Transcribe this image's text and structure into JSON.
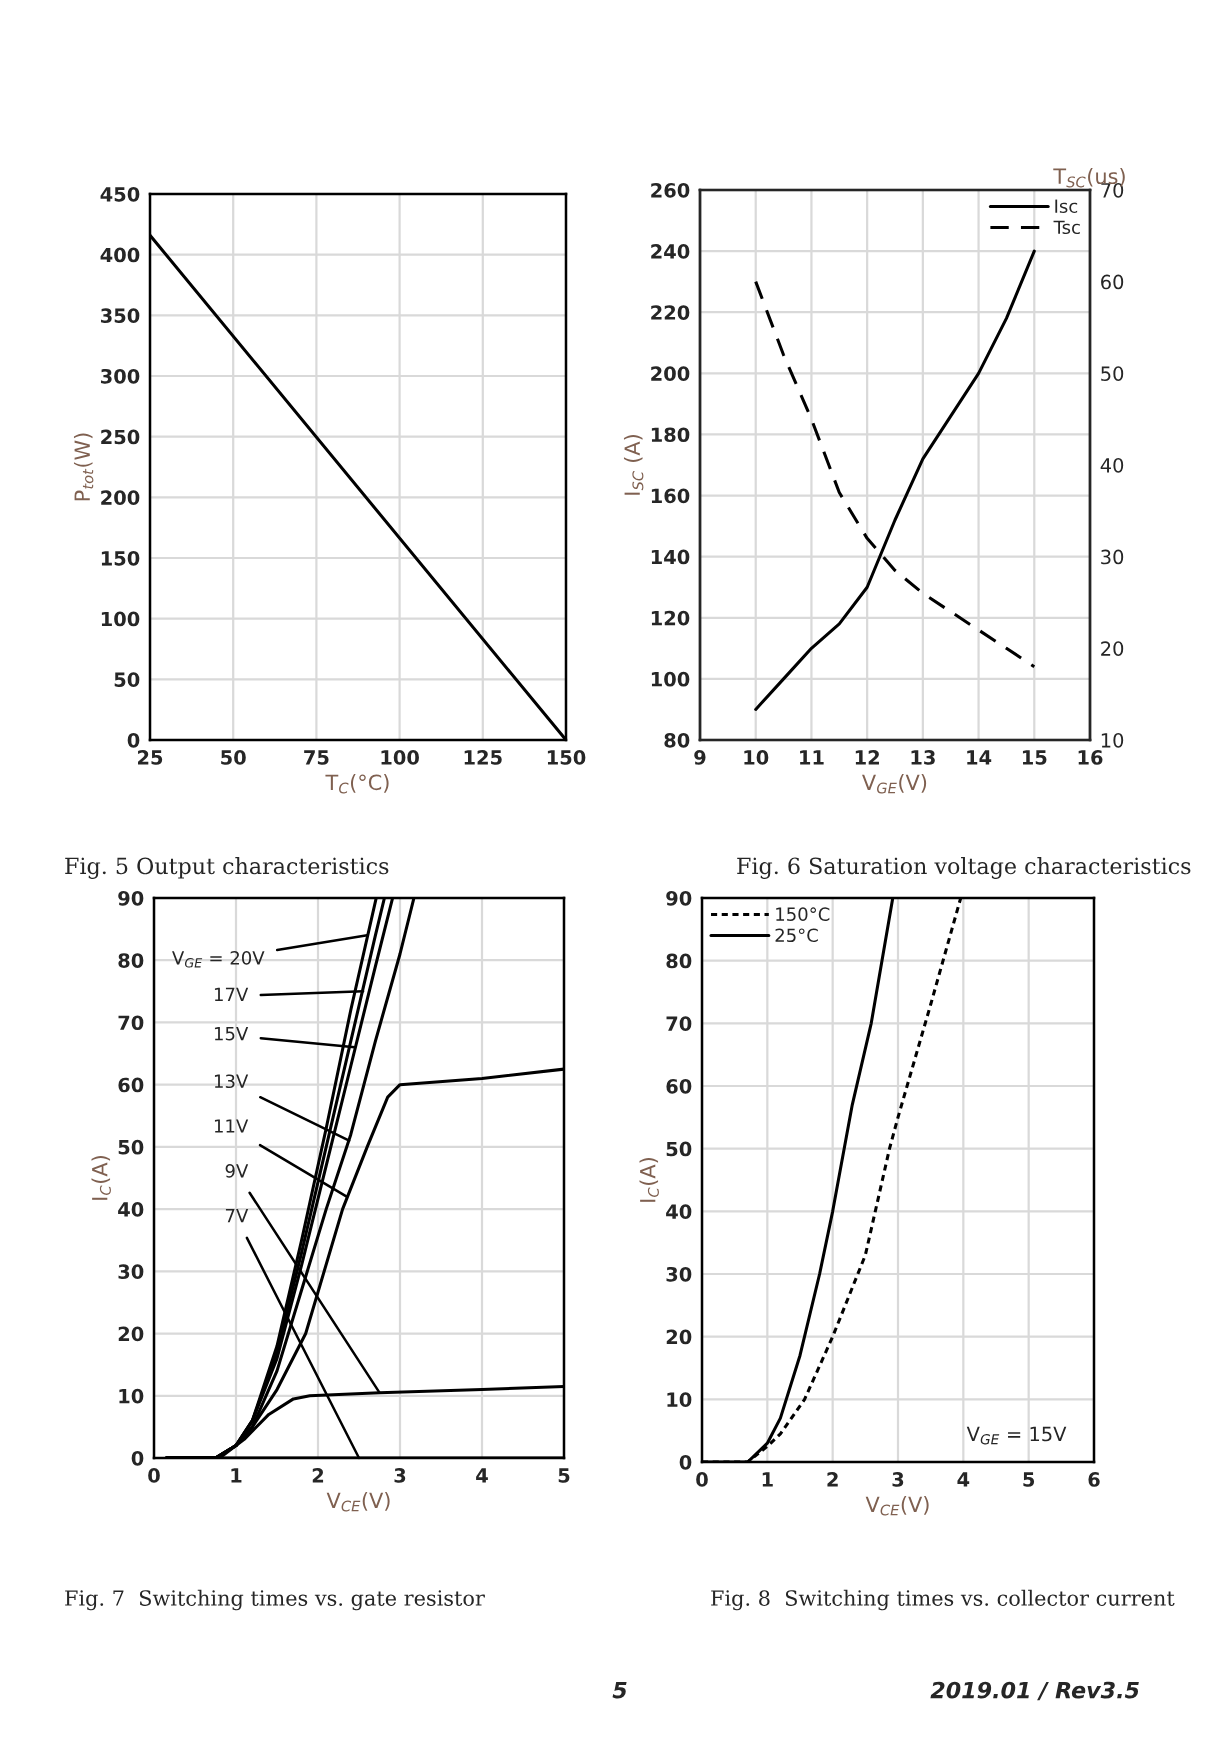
{
  "chart_data": [
    {
      "type": "line",
      "xlabel": "T$_{C}$(°C)",
      "ylabel": "P$_{tot}$(W)",
      "xlim": [
        25,
        150
      ],
      "xticks": [
        25,
        50,
        75,
        100,
        125,
        150
      ],
      "ylim": [
        0,
        450
      ],
      "yticks": [
        0,
        50,
        100,
        150,
        200,
        250,
        300,
        350,
        400,
        450
      ],
      "grid": true,
      "legend": false,
      "series": [
        {
          "color": "#000000",
          "x": [
            25,
            150
          ],
          "values": [
            416,
            0
          ]
        }
      ]
    },
    {
      "type": "line",
      "xlabel": "V$_{GE}$(V)",
      "ylabel": "I$_{SC}$ (A)",
      "y2label": "T$_{SC}$(us)",
      "xlim": [
        9,
        16
      ],
      "xticks": [
        9,
        10,
        11,
        12,
        13,
        14,
        15,
        16
      ],
      "ylim": [
        80,
        260
      ],
      "yticks": [
        80,
        100,
        120,
        140,
        160,
        180,
        200,
        220,
        240,
        260
      ],
      "y2lim": [
        10,
        70
      ],
      "y2ticks": [
        10,
        20,
        30,
        40,
        50,
        60,
        70
      ],
      "grid": true,
      "legend": "top right",
      "series": [
        {
          "name": "Isc",
          "color": "#000000",
          "line_style": "solid",
          "x": [
            10,
            10.5,
            11,
            11.5,
            12,
            12.5,
            13,
            13.5,
            14,
            14.5,
            15
          ],
          "values": [
            90,
            100,
            110,
            118,
            130,
            152,
            172,
            186,
            200,
            218,
            240
          ]
        },
        {
          "name": "Tsc",
          "color": "#000000",
          "line_style": "dashed",
          "axis": "y2",
          "x": [
            10,
            10.5,
            11,
            11.5,
            12,
            12.5,
            13,
            13.5,
            14,
            14.5,
            15
          ],
          "values": [
            60,
            52,
            45,
            37,
            32,
            28.5,
            26,
            24,
            22,
            20,
            18
          ]
        }
      ]
    },
    {
      "type": "line",
      "title": "Fig. 5 Output characteristics",
      "xlabel": "V$_{CE}$(V)",
      "ylabel": "I$_{C}$(A)",
      "xlim": [
        0,
        5
      ],
      "xticks": [
        0,
        1,
        2,
        3,
        4,
        5
      ],
      "ylim": [
        0,
        90
      ],
      "yticks": [
        0,
        10,
        20,
        30,
        40,
        50,
        60,
        70,
        80,
        90
      ],
      "grid": true,
      "legend": false,
      "annotations": [
        {
          "text": "V$_{GE}$ = 20V",
          "x": 2.6,
          "y": 84
        },
        {
          "text": "17V",
          "x": 2.55,
          "y": 75
        },
        {
          "text": "15V",
          "x": 2.45,
          "y": 66
        },
        {
          "text": "13V",
          "x": 2.38,
          "y": 51
        },
        {
          "text": "11V",
          "x": 2.35,
          "y": 42
        },
        {
          "text": "9V",
          "x": 2.75,
          "y": 10.5
        },
        {
          "text": "7V",
          "x": 2.5,
          "y": 0
        },
        "Fig. 7  Switching times vs. gate resistor"
      ],
      "series": [
        {
          "color": "#000000",
          "x": [
            0.15,
            0.75,
            1.0,
            1.2,
            1.5,
            1.8,
            2.1,
            2.4,
            2.71
          ],
          "values": [
            0,
            0,
            2,
            6,
            18,
            35,
            53,
            72,
            90
          ]
        },
        {
          "color": "#000000",
          "x": [
            0.15,
            0.75,
            1.0,
            1.2,
            1.5,
            1.8,
            2.1,
            2.4,
            2.7,
            2.81
          ],
          "values": [
            0,
            0,
            2,
            6,
            17,
            33,
            50,
            67,
            84,
            90
          ]
        },
        {
          "color": "#000000",
          "x": [
            0.15,
            0.75,
            1.0,
            1.2,
            1.5,
            1.8,
            2.1,
            2.4,
            2.7,
            2.91
          ],
          "values": [
            0,
            0,
            2,
            6,
            16,
            31,
            47,
            63,
            79,
            90
          ]
        },
        {
          "color": "#000000",
          "x": [
            0.15,
            0.75,
            1.0,
            1.2,
            1.5,
            1.8,
            2.1,
            2.4,
            2.7,
            3.0,
            3.17
          ],
          "values": [
            0,
            0,
            2,
            5,
            14,
            27,
            40,
            52,
            67,
            81,
            90
          ]
        },
        {
          "color": "#000000",
          "x": [
            0.15,
            0.75,
            1.0,
            1.2,
            1.5,
            1.85,
            2.3,
            2.6,
            2.85,
            3.0,
            4.0,
            5.0
          ],
          "values": [
            0,
            0,
            2,
            5,
            11,
            20,
            40,
            50,
            58,
            60,
            61,
            62.5
          ]
        },
        {
          "color": "#000000",
          "x": [
            0.15,
            0.8,
            1.1,
            1.4,
            1.7,
            1.9,
            2.75,
            4.0,
            5.0
          ],
          "values": [
            0,
            0,
            3,
            7,
            9.5,
            10,
            10.5,
            11,
            11.5
          ]
        },
        {
          "color": "#000000",
          "x": [
            0.15,
            5.0
          ],
          "values": [
            0,
            0
          ]
        }
      ]
    },
    {
      "type": "line",
      "title": "Fig. 6 Saturation voltage characteristics",
      "xlabel": "V$_{CE}$(V)",
      "ylabel": "I$_{C}$(A)",
      "xlim": [
        0,
        6
      ],
      "xticks": [
        0,
        1,
        2,
        3,
        4,
        5,
        6
      ],
      "ylim": [
        0,
        90
      ],
      "yticks": [
        0,
        10,
        20,
        30,
        40,
        50,
        60,
        70,
        80,
        90
      ],
      "grid": true,
      "legend": "top left",
      "annotations": [
        "V$_{GE}$ = 15V",
        "Fig. 8  Switching times vs. collector current",
        "5",
        "2019.01 / Rev3.5"
      ],
      "series": [
        {
          "name": "150°C",
          "color": "#000000",
          "line_style": "dotted",
          "x": [
            0,
            0.7,
            1.0,
            1.2,
            1.57,
            2.0,
            2.5,
            2.87,
            3.0,
            3.5,
            3.96
          ],
          "values": [
            0,
            0,
            2.5,
            4.5,
            10,
            20,
            33,
            50,
            55,
            73,
            90
          ]
        },
        {
          "name": "25°C",
          "color": "#000000",
          "line_style": "solid",
          "x": [
            0,
            0.7,
            1.0,
            1.2,
            1.5,
            1.8,
            2.0,
            2.3,
            2.59,
            2.92
          ],
          "values": [
            0,
            0,
            3,
            7,
            17,
            30,
            40,
            57,
            70,
            90
          ]
        }
      ]
    }
  ]
}
